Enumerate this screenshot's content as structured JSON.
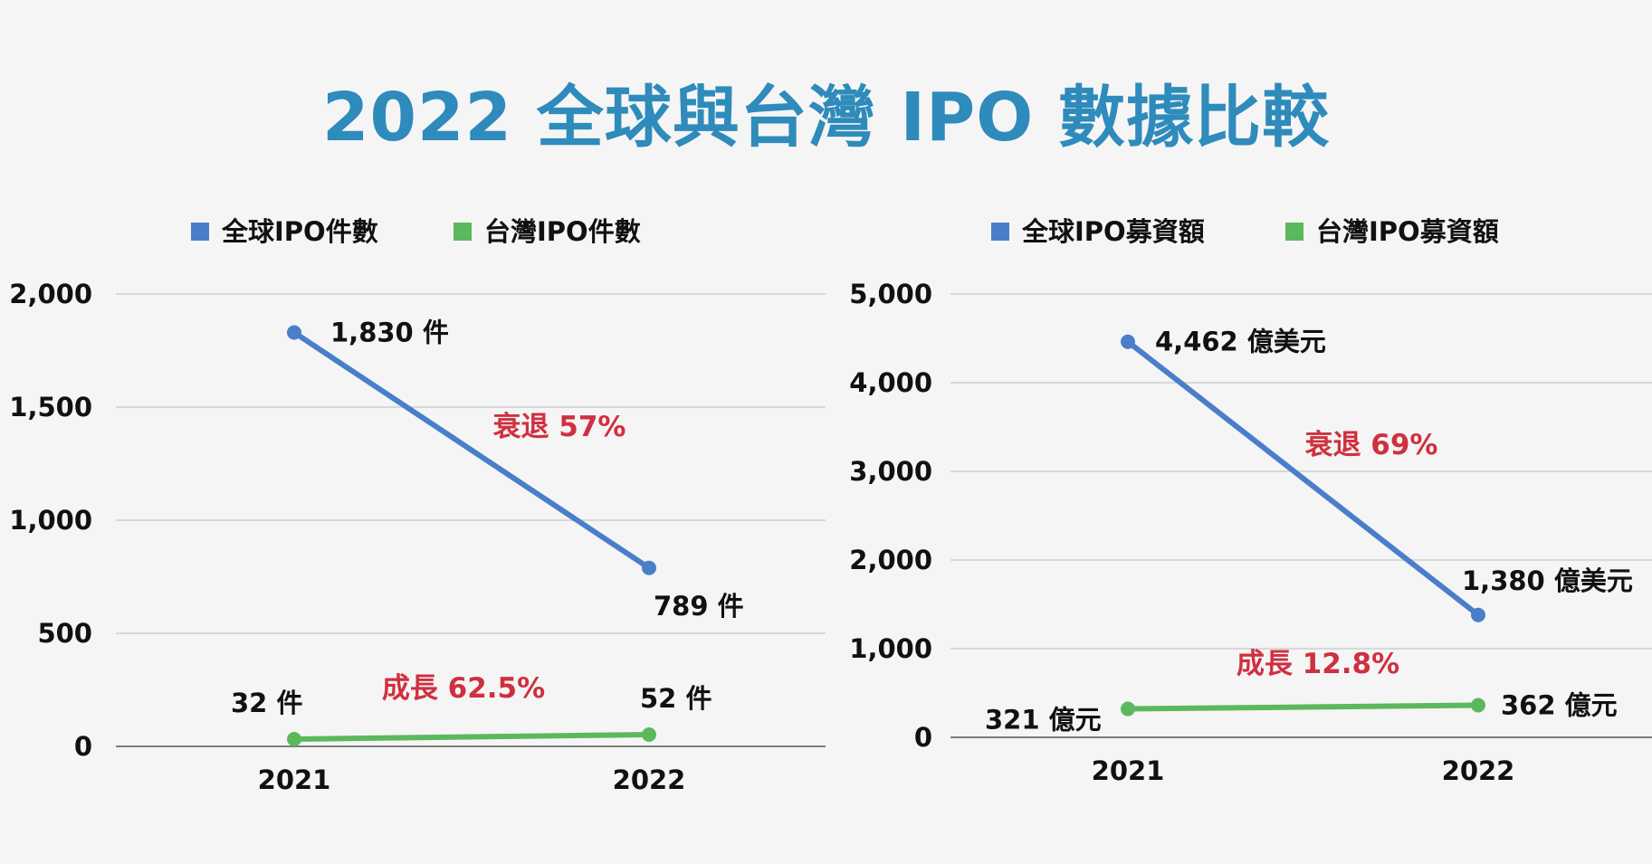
{
  "title": "2022 全球與台灣 IPO 數據比較",
  "chart_data": [
    {
      "type": "line",
      "categories": [
        "2021",
        "2022"
      ],
      "ylim": [
        0,
        2000
      ],
      "yticks": [
        0,
        500,
        1000,
        1500,
        2000
      ],
      "ytick_labels": [
        "0",
        "500",
        "1,000",
        "1,500",
        "2,000"
      ],
      "legend_position": "top",
      "grid": true,
      "series": [
        {
          "name": "全球IPO件數",
          "color": "#4a7ec9",
          "values": [
            1830,
            789
          ],
          "labels": [
            "1,830 件",
            "789 件"
          ],
          "annotation": "衰退 57%"
        },
        {
          "name": "台灣IPO件數",
          "color": "#5cb85c",
          "values": [
            32,
            52
          ],
          "labels": [
            "32 件",
            "52 件"
          ],
          "annotation": "成長 62.5%"
        }
      ]
    },
    {
      "type": "line",
      "categories": [
        "2021",
        "2022"
      ],
      "ylim": [
        0,
        5000
      ],
      "yticks": [
        0,
        1000,
        2000,
        3000,
        4000,
        5000
      ],
      "ytick_labels": [
        "0",
        "1,000",
        "2,000",
        "3,000",
        "4,000",
        "5,000"
      ],
      "legend_position": "top",
      "grid": true,
      "series": [
        {
          "name": "全球IPO募資額",
          "color": "#4a7ec9",
          "values": [
            4462,
            1380
          ],
          "labels": [
            "4,462 億美元",
            "1,380 億美元"
          ],
          "annotation": "衰退 69%"
        },
        {
          "name": "台灣IPO募資額",
          "color": "#5cb85c",
          "values": [
            321,
            362
          ],
          "labels": [
            "321 億元",
            "362 億元"
          ],
          "annotation": "成長 12.8%"
        }
      ]
    }
  ]
}
